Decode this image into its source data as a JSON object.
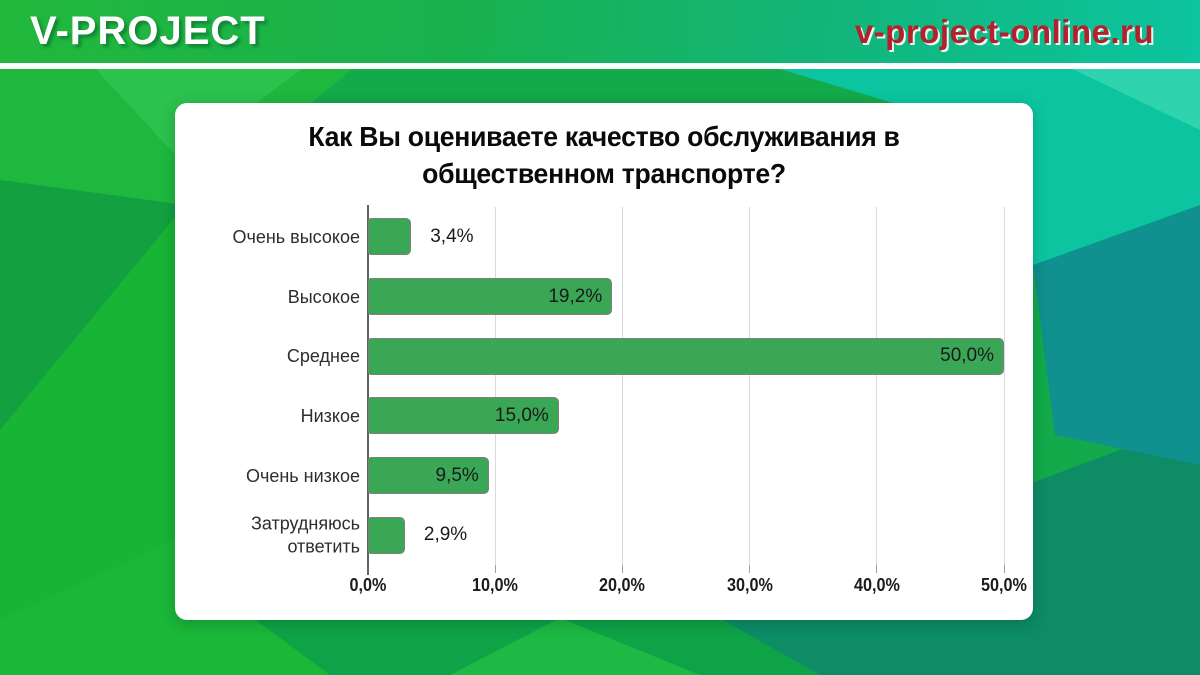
{
  "header": {
    "logo": "V-PROJECT",
    "domain": "v-project-online.ru"
  },
  "chart_data": {
    "type": "bar",
    "orientation": "horizontal",
    "title": "Как Вы оцениваете качество обслуживания в общественном транспорте?",
    "categories": [
      "Очень высокое",
      "Высокое",
      "Среднее",
      "Низкое",
      "Очень низкое",
      "Затрудняюсь ответить"
    ],
    "values": [
      3.4,
      19.2,
      50.0,
      15.0,
      9.5,
      2.9
    ],
    "value_labels": [
      "3,4%",
      "19,2%",
      "50,0%",
      "15,0%",
      "9,5%",
      "2,9%"
    ],
    "label_placement": [
      "outside",
      "inside",
      "inside",
      "inside",
      "inside",
      "outside"
    ],
    "x_ticks": [
      0,
      10,
      20,
      30,
      40,
      50
    ],
    "x_tick_labels": [
      "0,0%",
      "10,0%",
      "20,0%",
      "30,0%",
      "40,0%",
      "50,0%"
    ],
    "xlim": [
      0,
      52
    ],
    "grid": true,
    "legend": false,
    "bar_color": "#3aa757"
  },
  "colors": {
    "header_green_left": "#22b83c",
    "header_teal_right": "#0cc4a0",
    "domain_red": "#b3212b",
    "bar_green": "#3aa757",
    "bar_border": "#7d8177",
    "gridline": "#d9dadc",
    "axis": "#5f6368",
    "card_bg": "#ffffff"
  }
}
